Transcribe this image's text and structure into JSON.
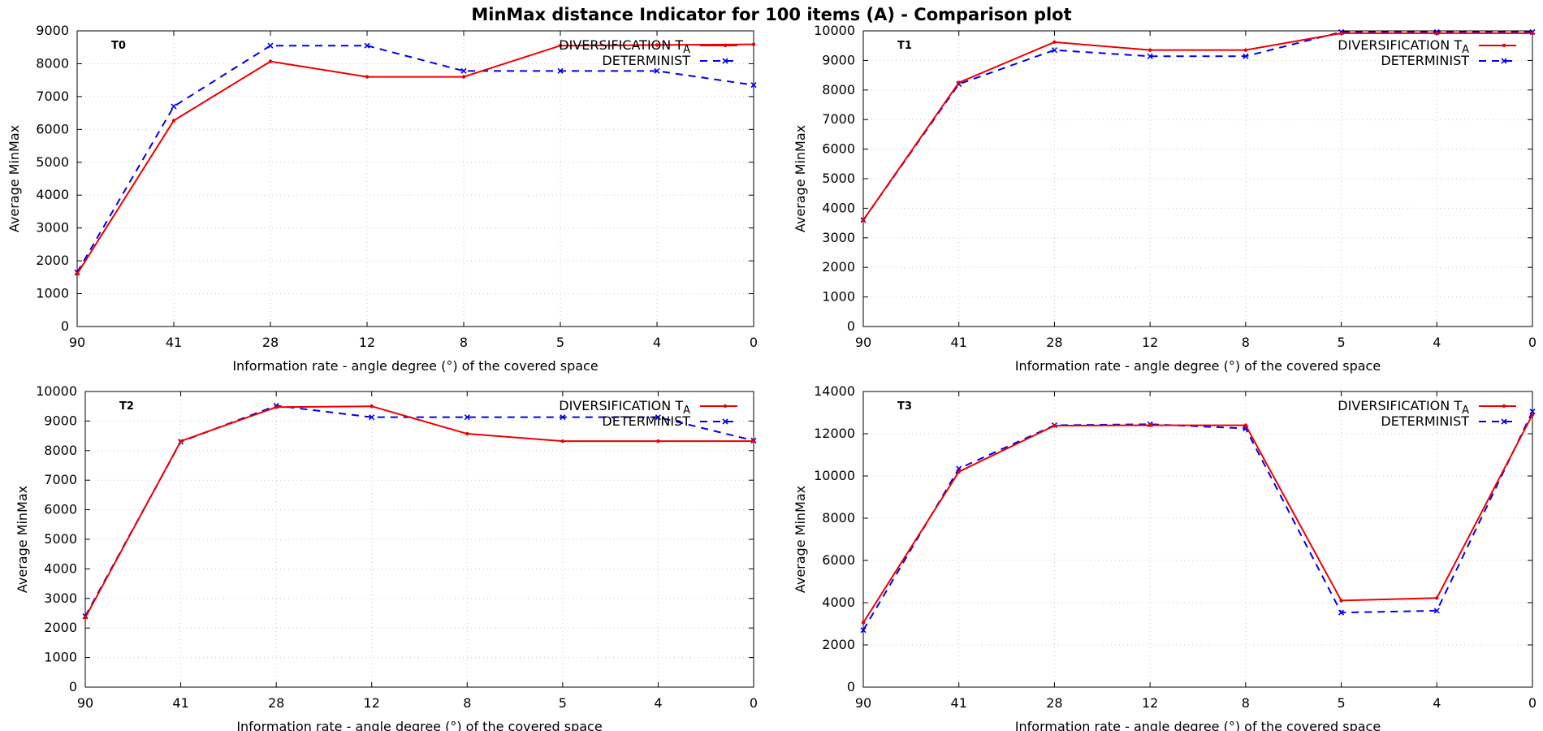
{
  "title": "MinMax distance Indicator for 100 items (A)  - Comparison plot",
  "colors": {
    "diversification": "#ee0000",
    "determinist": "#0000ee",
    "grid": "#c8c8c8",
    "axis": "#000000"
  },
  "chart_data": [
    {
      "type": "line",
      "panel_label": "T0",
      "categories": [
        "90",
        "41",
        "28",
        "12",
        "8",
        "5",
        "4",
        "0"
      ],
      "xlabel": "Information rate - angle degree (°)  of the covered space",
      "ylabel": "Average MinMax",
      "ylim": [
        0,
        9000
      ],
      "yticks": [
        0,
        1000,
        2000,
        3000,
        4000,
        5000,
        6000,
        7000,
        8000,
        9000
      ],
      "grid": true,
      "legend_position": "top-right",
      "series": [
        {
          "name": "DIVERSIFICATION T",
          "name_sub": "A",
          "style": "solid",
          "marker": "dot",
          "values": [
            1600,
            6270,
            8070,
            7600,
            7600,
            8550,
            8570,
            8590
          ]
        },
        {
          "name": "DETERMINIST",
          "style": "dashed",
          "marker": "cross",
          "values": [
            1650,
            6700,
            8550,
            8550,
            7780,
            7780,
            7780,
            7350
          ]
        }
      ]
    },
    {
      "type": "line",
      "panel_label": "T1",
      "categories": [
        "90",
        "41",
        "28",
        "12",
        "8",
        "5",
        "4",
        "0"
      ],
      "xlabel": "Information rate - angle degree (°)  of the covered space",
      "ylabel": "Average MinMax",
      "ylim": [
        0,
        10000
      ],
      "yticks": [
        0,
        1000,
        2000,
        3000,
        4000,
        5000,
        6000,
        7000,
        8000,
        9000,
        10000
      ],
      "grid": true,
      "legend_position": "top-right",
      "series": [
        {
          "name": "DIVERSIFICATION T",
          "name_sub": "A",
          "style": "solid",
          "marker": "dot",
          "values": [
            3600,
            8250,
            9620,
            9350,
            9350,
            9920,
            9920,
            9920
          ]
        },
        {
          "name": "DETERMINIST",
          "style": "dashed",
          "marker": "cross",
          "values": [
            3600,
            8200,
            9350,
            9140,
            9140,
            9960,
            9960,
            9960
          ]
        }
      ]
    },
    {
      "type": "line",
      "panel_label": "T2",
      "categories": [
        "90",
        "41",
        "28",
        "12",
        "8",
        "5",
        "4",
        "0"
      ],
      "xlabel": "Information rate - angle degree (°)  of the covered space",
      "ylabel": "Average MinMax",
      "ylim": [
        0,
        10000
      ],
      "yticks": [
        0,
        1000,
        2000,
        3000,
        4000,
        5000,
        6000,
        7000,
        8000,
        9000,
        10000
      ],
      "grid": true,
      "legend_position": "top-right",
      "series": [
        {
          "name": "DIVERSIFICATION T",
          "name_sub": "A",
          "style": "solid",
          "marker": "dot",
          "values": [
            2350,
            8320,
            9470,
            9500,
            8570,
            8320,
            8320,
            8320
          ]
        },
        {
          "name": "DETERMINIST",
          "style": "dashed",
          "marker": "cross",
          "values": [
            2400,
            8300,
            9520,
            9130,
            9130,
            9130,
            9130,
            8340
          ]
        }
      ]
    },
    {
      "type": "line",
      "panel_label": "T3",
      "categories": [
        "90",
        "41",
        "28",
        "12",
        "8",
        "5",
        "4",
        "0"
      ],
      "xlabel": "Information rate - angle degree (°)  of the covered space",
      "ylabel": "Average MinMax",
      "ylim": [
        0,
        14000
      ],
      "yticks": [
        0,
        2000,
        4000,
        6000,
        8000,
        10000,
        12000,
        14000
      ],
      "grid": true,
      "legend_position": "top-right",
      "series": [
        {
          "name": "DIVERSIFICATION T",
          "name_sub": "A",
          "style": "solid",
          "marker": "dot",
          "values": [
            3050,
            10200,
            12380,
            12400,
            12400,
            4100,
            4220,
            12900
          ]
        },
        {
          "name": "DETERMINIST",
          "style": "dashed",
          "marker": "cross",
          "values": [
            2700,
            10350,
            12400,
            12450,
            12250,
            3530,
            3620,
            13050
          ]
        }
      ]
    }
  ]
}
